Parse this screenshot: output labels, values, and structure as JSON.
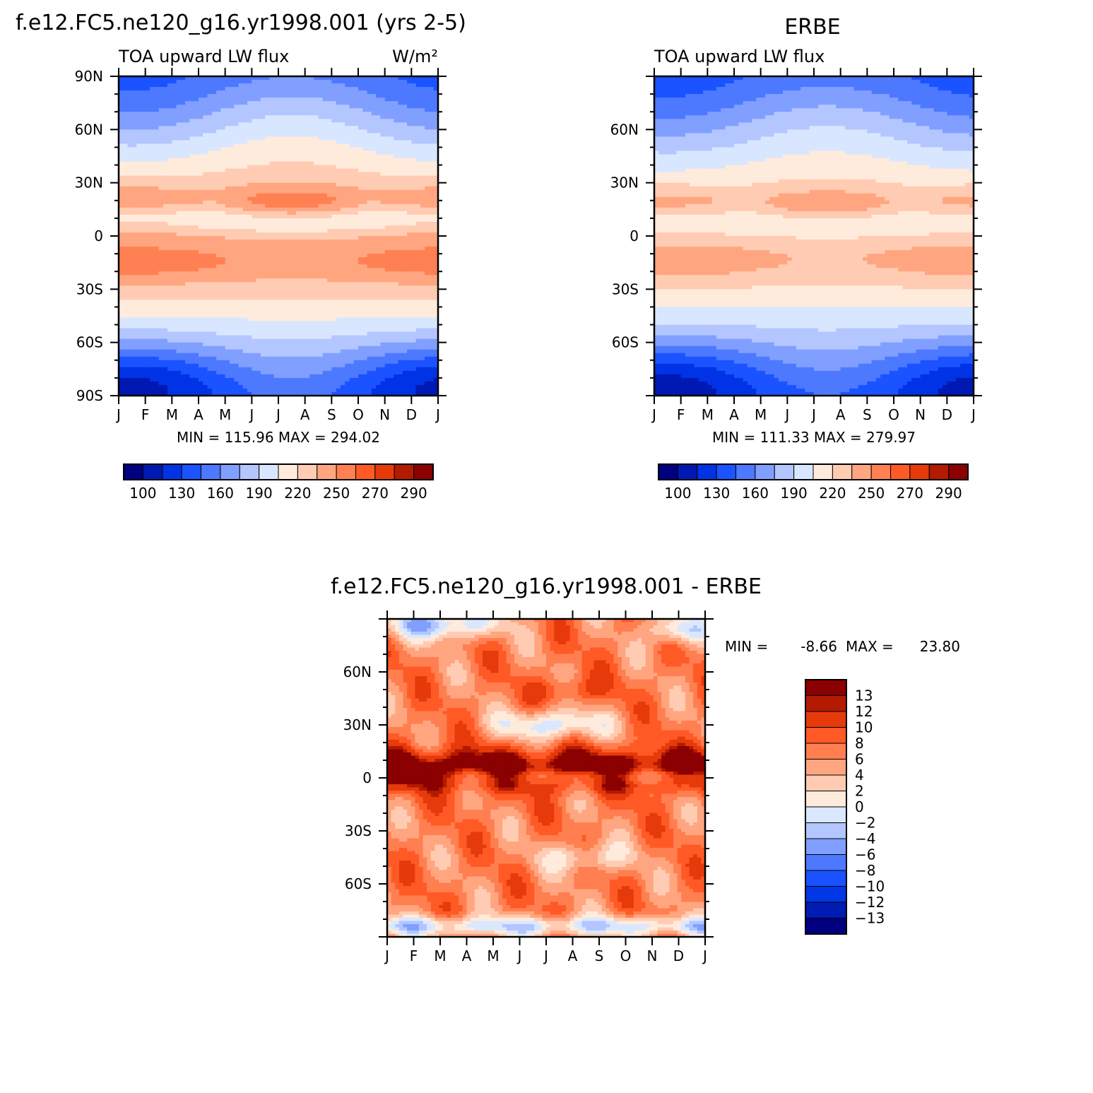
{
  "colors": {
    "model_obs_scale": [
      "#000080",
      "#0019b3",
      "#0033e6",
      "#1a53ff",
      "#4d79ff",
      "#809fff",
      "#b3c6ff",
      "#d9e6ff",
      "#ffebdc",
      "#ffccb3",
      "#ffa680",
      "#ff8052",
      "#ff5a26",
      "#e63a0b",
      "#b31a00",
      "#8b0000"
    ],
    "diff_scale": [
      "#000080",
      "#001cb3",
      "#0038e6",
      "#1a52ff",
      "#4d79ff",
      "#809fff",
      "#b3c6ff",
      "#d9e8ff",
      "#ffebdc",
      "#ffccb3",
      "#ffa680",
      "#ff7f50",
      "#ff5a26",
      "#e63a0b",
      "#b31a00",
      "#8b0000"
    ]
  },
  "chart_data": [
    {
      "type": "heatmap",
      "panel": "model",
      "title": "f.e12.FC5.ne120_g16.yr1998.001 (yrs 2-5)",
      "left_label": "TOA upward LW flux",
      "right_label": "W/m²",
      "x_ticks": [
        "J",
        "F",
        "M",
        "A",
        "M",
        "J",
        "J",
        "A",
        "S",
        "O",
        "N",
        "D",
        "J"
      ],
      "y_ticks": [
        "90N",
        "60N",
        "30N",
        "0",
        "30S",
        "60S",
        "90S"
      ],
      "ylim": [
        -90,
        90
      ],
      "minmax": "MIN = 115.96 MAX = 294.02",
      "colorbar_labels": [
        "100",
        "130",
        "160",
        "190",
        "220",
        "250",
        "270",
        "290"
      ],
      "levels": [
        100,
        115,
        130,
        145,
        160,
        175,
        190,
        205,
        220,
        235,
        250,
        260,
        270,
        280,
        290
      ]
    },
    {
      "type": "heatmap",
      "panel": "obs",
      "title": "ERBE",
      "left_label": "TOA upward LW flux",
      "x_ticks": [
        "J",
        "F",
        "M",
        "A",
        "M",
        "J",
        "J",
        "A",
        "S",
        "O",
        "N",
        "D",
        "J"
      ],
      "y_ticks": [
        "60N",
        "30N",
        "0",
        "30S",
        "60S"
      ],
      "ylim": [
        -90,
        90
      ],
      "minmax": "MIN = 111.33 MAX = 279.97",
      "colorbar_labels": [
        "100",
        "130",
        "160",
        "190",
        "220",
        "250",
        "270",
        "290"
      ],
      "levels": [
        100,
        115,
        130,
        145,
        160,
        175,
        190,
        205,
        220,
        235,
        250,
        260,
        270,
        280,
        290
      ]
    },
    {
      "type": "heatmap",
      "panel": "difference",
      "title": "f.e12.FC5.ne120_g16.yr1998.001 - ERBE",
      "x_ticks": [
        "J",
        "F",
        "M",
        "A",
        "M",
        "J",
        "J",
        "A",
        "S",
        "O",
        "N",
        "D",
        "J"
      ],
      "y_ticks": [
        "60N",
        "30N",
        "0",
        "30S",
        "60S"
      ],
      "ylim": [
        -90,
        90
      ],
      "minmax_label": "MIN =",
      "min_value": "-8.66",
      "max_label": "MAX =",
      "max_value": "23.80",
      "colorbar_labels": [
        "13",
        "12",
        "10",
        "8",
        "6",
        "4",
        "2",
        "0",
        "−2",
        "−4",
        "−6",
        "−8",
        "−10",
        "−12",
        "−13"
      ],
      "levels": [
        -13,
        -12,
        -10,
        -8,
        -6,
        -4,
        -2,
        0,
        2,
        4,
        6,
        8,
        10,
        12,
        13
      ]
    }
  ]
}
